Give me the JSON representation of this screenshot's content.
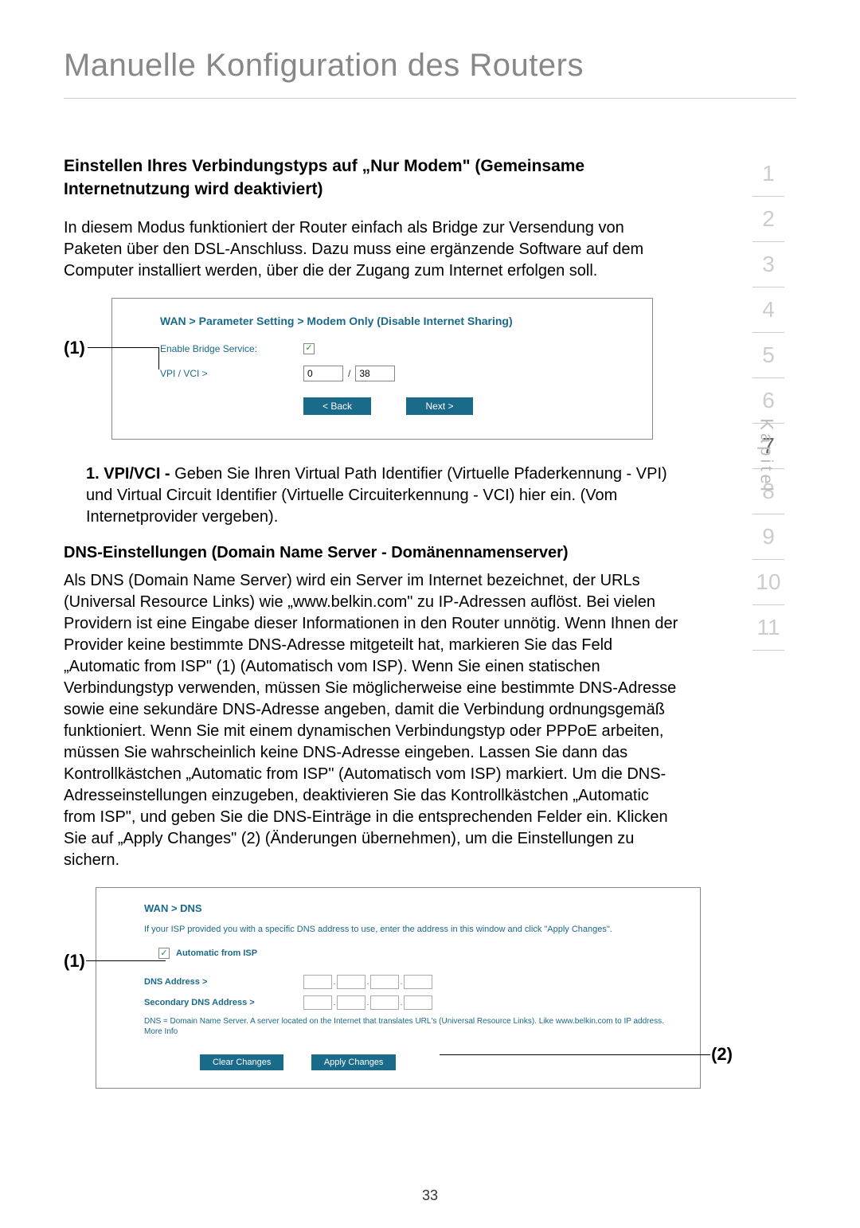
{
  "page_title": "Manuelle Konfiguration des Routers",
  "page_number": "33",
  "sidebar": {
    "label": "Kapitel",
    "chapters": [
      "1",
      "2",
      "3",
      "4",
      "5",
      "6",
      "7",
      "8",
      "9",
      "10",
      "11"
    ],
    "active": "7"
  },
  "section1": {
    "heading": "Einstellen Ihres Verbindungstyps auf „Nur Modem\" (Gemeinsame Internetnutzung wird deaktiviert)",
    "body": "In diesem Modus funktioniert der Router einfach als Bridge zur Versendung von Paketen über den DSL-Anschluss. Dazu muss eine ergänzende Software auf dem Computer installiert werden, über die der Zugang zum Internet erfolgen soll."
  },
  "screenshot1": {
    "marker": "(1)",
    "breadcrumb": "WAN > Parameter Setting > Modem Only (Disable Internet Sharing)",
    "enable_label": "Enable Bridge Service:",
    "vpi_label": "VPI / VCI >",
    "vpi_value": "0",
    "vci_value": "38",
    "slash": "/",
    "back_btn": "< Back",
    "next_btn": "Next >"
  },
  "item1": {
    "label": "1. VPI/VCI - ",
    "text": "Geben Sie Ihren Virtual Path Identifier (Virtuelle Pfaderkennung - VPI) und Virtual Circuit Identifier (Virtuelle Circuiterkennung - VCI) hier ein. (Vom Internetprovider vergeben)."
  },
  "section2": {
    "heading": "DNS-Einstellungen (Domain Name Server - Domänennamenserver)",
    "body": "Als DNS (Domain Name Server) wird ein Server im Internet bezeichnet, der URLs (Universal Resource Links) wie „www.belkin.com\" zu IP-Adressen auflöst. Bei vielen Providern ist eine Eingabe dieser Informationen in den Router unnötig. Wenn Ihnen der Provider keine bestimmte DNS-Adresse mitgeteilt hat, markieren Sie das Feld „Automatic from ISP\"  (1) (Automatisch vom ISP). Wenn Sie einen statischen Verbindungstyp verwenden, müssen Sie möglicherweise eine bestimmte DNS-Adresse sowie eine sekundäre DNS-Adresse angeben, damit die Verbindung ordnungsgemäß funktioniert. Wenn Sie mit einem dynamischen Verbindungstyp oder PPPoE arbeiten, müssen Sie wahrscheinlich keine DNS-Adresse eingeben. Lassen Sie dann das Kontrollkästchen „Automatic from ISP\" (Automatisch vom ISP) markiert. Um die DNS-Adresseinstellungen einzugeben, deaktivieren Sie das Kontrollkästchen „Automatic from ISP\", und geben Sie die DNS-Einträge in die entsprechenden Felder ein. Klicken Sie auf „Apply Changes\" (2) (Änderungen übernehmen), um die Einstellungen zu sichern."
  },
  "screenshot2": {
    "marker1": "(1)",
    "marker2": "(2)",
    "breadcrumb": "WAN > DNS",
    "helptext": "If your ISP provided you with a specific DNS address to use, enter the address in this window and click \"Apply Changes\".",
    "auto_label": "Automatic from ISP",
    "dns_label": "DNS Address >",
    "secondary_label": "Secondary DNS Address >",
    "note": "DNS = Domain Name Server. A server located on the Internet that translates URL's (Universal Resource Links). Like www.belkin.com to IP address. More Info",
    "clear_btn": "Clear Changes",
    "apply_btn": "Apply Changes"
  }
}
